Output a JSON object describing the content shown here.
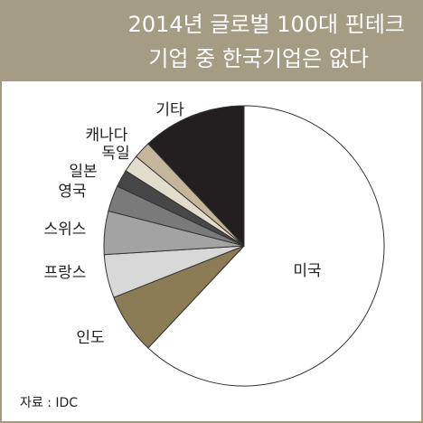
{
  "chart_data": {
    "type": "pie",
    "title": [
      "2014년 글로벌 100대 핀테크",
      "기업 중 한국기업은 없다"
    ],
    "categories": [
      "미국",
      "인도",
      "프랑스",
      "스위스",
      "영국",
      "일본",
      "독일",
      "캐나다",
      "기타"
    ],
    "values": [
      62,
      7,
      5,
      5,
      3,
      2,
      2,
      2,
      12
    ],
    "colors": [
      "#ffffff",
      "#8c7c56",
      "#d8d8d8",
      "#a3a3a3",
      "#7a7a7a",
      "#474747",
      "#e2dccb",
      "#c3b69a",
      "#231f20"
    ],
    "source": "자료 : IDC"
  }
}
